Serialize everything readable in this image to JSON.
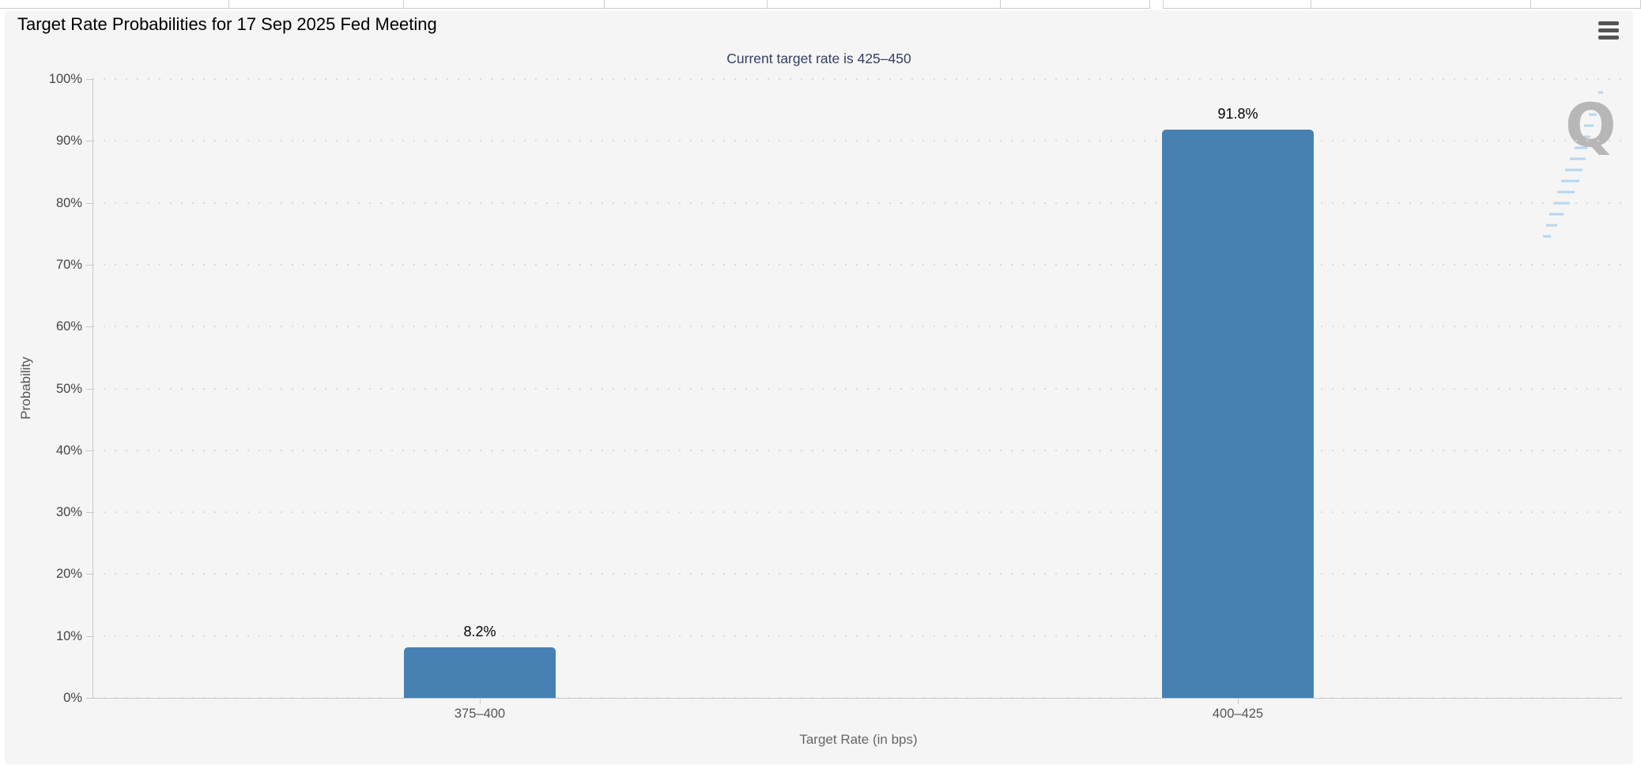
{
  "header": {
    "menu_icon": "hamburger-icon"
  },
  "chart_data": {
    "type": "bar",
    "title": "Target Rate Probabilities for 17 Sep 2025 Fed Meeting",
    "subtitle": "Current target rate is 425–450",
    "categories": [
      "375–400",
      "400–425"
    ],
    "values": [
      8.2,
      91.8
    ],
    "value_labels": [
      "8.2%",
      "91.8%"
    ],
    "xlabel": "Target Rate (in bps)",
    "ylabel": "Probability",
    "ylim": [
      0,
      100
    ],
    "ytick_interval": 10,
    "ytick_labels": [
      "0%",
      "10%",
      "20%",
      "30%",
      "40%",
      "50%",
      "60%",
      "70%",
      "80%",
      "90%",
      "100%"
    ],
    "grid": "dotted-horizontal",
    "legend": "none",
    "watermark_letter": "Q",
    "colors": {
      "bar": "#4781B4",
      "subtitle_text": "#333F63",
      "axis_text": "#444444",
      "category_text": "#555555",
      "axis_title_text": "#666666",
      "axis_line": "#c9c9c9",
      "grid_dot": "#d9d9d9",
      "card_bg": "#f5f5f5",
      "watermark_gray": "#b7b7b7",
      "watermark_blue": "#b5d6ef"
    }
  }
}
